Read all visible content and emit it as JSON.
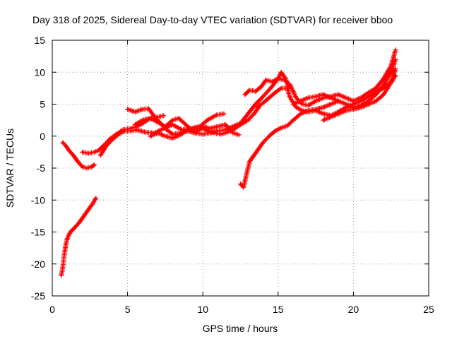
{
  "chart_data": {
    "type": "scatter",
    "title": "Day 318 of 2025, Sidereal Day-to-day VTEC variation (SDTVAR) for receiver bboo",
    "xlabel": "GPS time / hours",
    "ylabel": "SDTVAR / TECUs",
    "xlim": [
      0,
      25
    ],
    "ylim": [
      -25,
      15
    ],
    "xticks": [
      0,
      5,
      10,
      15,
      20,
      25
    ],
    "yticks": [
      -25,
      -20,
      -15,
      -10,
      -5,
      0,
      5,
      10,
      15
    ],
    "grid": true,
    "marker": "+",
    "series": [
      {
        "color": "#ff0000",
        "segments": [
          [
            [
              0.6,
              -21.8
            ],
            [
              0.7,
              -20.5
            ],
            [
              0.8,
              -18.5
            ],
            [
              0.9,
              -17.0
            ],
            [
              1.0,
              -16.0
            ],
            [
              1.2,
              -15.0
            ],
            [
              1.5,
              -14.3
            ],
            [
              1.8,
              -13.5
            ],
            [
              2.1,
              -12.5
            ],
            [
              2.4,
              -11.5
            ],
            [
              2.7,
              -10.5
            ],
            [
              2.9,
              -9.7
            ]
          ],
          [
            [
              0.7,
              -1.0
            ],
            [
              0.9,
              -1.5
            ],
            [
              1.1,
              -2.2
            ],
            [
              1.4,
              -3.0
            ],
            [
              1.7,
              -4.0
            ],
            [
              2.0,
              -4.8
            ],
            [
              2.3,
              -5.0
            ],
            [
              2.6,
              -4.8
            ],
            [
              2.8,
              -4.5
            ]
          ],
          [
            [
              2.0,
              -2.5
            ],
            [
              2.4,
              -2.7
            ],
            [
              2.8,
              -2.5
            ],
            [
              3.1,
              -2.2
            ],
            [
              3.4,
              -1.5
            ],
            [
              3.8,
              -0.5
            ],
            [
              4.2,
              0.2
            ],
            [
              4.7,
              1.0
            ],
            [
              5.2,
              1.2
            ],
            [
              5.6,
              1.5
            ],
            [
              6.0,
              2.0
            ],
            [
              6.5,
              2.8
            ],
            [
              7.0,
              3.0
            ],
            [
              7.4,
              3.2
            ]
          ],
          [
            [
              3.2,
              -3.0
            ],
            [
              3.6,
              -1.5
            ],
            [
              4.0,
              -0.5
            ],
            [
              4.4,
              0.3
            ],
            [
              4.8,
              0.8
            ],
            [
              5.2,
              0.8
            ],
            [
              5.6,
              1.0
            ],
            [
              6.2,
              0.6
            ],
            [
              6.8,
              0.5
            ],
            [
              7.4,
              1.2
            ],
            [
              8.0,
              1.8
            ],
            [
              8.6,
              1.0
            ],
            [
              9.2,
              1.2
            ],
            [
              9.8,
              1.5
            ],
            [
              10.3,
              2.5
            ],
            [
              10.9,
              3.3
            ],
            [
              11.4,
              3.5
            ]
          ],
          [
            [
              5.0,
              4.2
            ],
            [
              5.5,
              3.8
            ],
            [
              6.0,
              4.2
            ],
            [
              6.4,
              4.3
            ],
            [
              6.8,
              3.0
            ],
            [
              7.2,
              2.0
            ],
            [
              7.6,
              1.0
            ],
            [
              8.0,
              0.3
            ],
            [
              8.5,
              0.5
            ],
            [
              9.0,
              0.8
            ],
            [
              9.5,
              0.5
            ],
            [
              10.0,
              0.3
            ],
            [
              10.5,
              0.5
            ],
            [
              11.0,
              0.8
            ],
            [
              11.5,
              1.0
            ],
            [
              12.0,
              1.5
            ],
            [
              12.5,
              2.0
            ],
            [
              13.0,
              3.5
            ],
            [
              13.5,
              5.0
            ],
            [
              14.0,
              6.2
            ],
            [
              14.5,
              7.5
            ],
            [
              15.0,
              9.0
            ],
            [
              15.2,
              10.0
            ],
            [
              15.5,
              9.0
            ],
            [
              15.7,
              7.5
            ]
          ],
          [
            [
              6.5,
              0.0
            ],
            [
              7.0,
              0.5
            ],
            [
              7.5,
              0.0
            ],
            [
              8.0,
              -0.3
            ],
            [
              8.5,
              0.2
            ],
            [
              9.0,
              1.0
            ],
            [
              9.5,
              1.2
            ],
            [
              10.0,
              1.2
            ],
            [
              10.4,
              0.8
            ],
            [
              10.8,
              0.5
            ],
            [
              11.2,
              0.3
            ],
            [
              11.6,
              0.6
            ],
            [
              12.0,
              1.0
            ],
            [
              12.5,
              1.8
            ],
            [
              13.0,
              2.5
            ],
            [
              13.4,
              3.5
            ],
            [
              13.7,
              4.5
            ]
          ],
          [
            [
              5.5,
              1.8
            ],
            [
              6.0,
              2.5
            ],
            [
              6.5,
              2.8
            ],
            [
              7.0,
              2.2
            ],
            [
              7.5,
              1.5
            ],
            [
              8.0,
              2.5
            ],
            [
              8.4,
              2.8
            ],
            [
              9.0,
              1.5
            ],
            [
              9.5,
              0.5
            ],
            [
              10.0,
              1.5
            ],
            [
              10.5,
              1.2
            ],
            [
              11.0,
              1.5
            ],
            [
              11.5,
              1.8
            ],
            [
              12.0,
              0.5
            ],
            [
              12.4,
              0.2
            ]
          ],
          [
            [
              12.5,
              -7.5
            ],
            [
              12.7,
              -8.0
            ],
            [
              12.9,
              -6.0
            ],
            [
              13.1,
              -4.0
            ],
            [
              13.4,
              -3.0
            ],
            [
              13.7,
              -2.0
            ],
            [
              14.0,
              -1.0
            ],
            [
              14.4,
              0.0
            ],
            [
              14.8,
              0.8
            ],
            [
              15.2,
              1.3
            ],
            [
              15.6,
              1.6
            ],
            [
              16.0,
              2.5
            ],
            [
              16.5,
              3.5
            ],
            [
              17.0,
              4.0
            ],
            [
              17.5,
              4.2
            ],
            [
              18.0,
              4.5
            ],
            [
              18.5,
              5.0
            ],
            [
              19.0,
              5.5
            ]
          ],
          [
            [
              12.8,
              6.5
            ],
            [
              13.1,
              7.2
            ],
            [
              13.5,
              7.0
            ],
            [
              13.9,
              7.8
            ],
            [
              14.2,
              8.8
            ],
            [
              14.6,
              8.5
            ],
            [
              15.0,
              9.0
            ],
            [
              15.4,
              8.8
            ],
            [
              15.8,
              8.0
            ],
            [
              16.2,
              6.0
            ],
            [
              16.6,
              5.0
            ],
            [
              17.0,
              4.8
            ],
            [
              17.5,
              5.5
            ],
            [
              18.0,
              6.0
            ],
            [
              18.5,
              6.2
            ],
            [
              19.0,
              6.5
            ],
            [
              19.5,
              6.0
            ],
            [
              20.0,
              5.5
            ],
            [
              20.5,
              6.0
            ],
            [
              21.0,
              6.8
            ],
            [
              21.5,
              7.5
            ],
            [
              22.0,
              9.0
            ],
            [
              22.5,
              11.0
            ],
            [
              22.8,
              13.5
            ]
          ],
          [
            [
              13.6,
              4.5
            ],
            [
              14.0,
              5.2
            ],
            [
              14.4,
              6.0
            ],
            [
              14.8,
              6.8
            ],
            [
              15.2,
              7.5
            ],
            [
              15.6,
              7.5
            ],
            [
              15.8,
              6.0
            ],
            [
              16.2,
              4.5
            ],
            [
              16.6,
              4.0
            ],
            [
              17.0,
              3.8
            ],
            [
              17.5,
              4.0
            ],
            [
              18.0,
              3.5
            ],
            [
              18.5,
              3.2
            ],
            [
              19.0,
              3.8
            ],
            [
              19.5,
              4.5
            ],
            [
              20.0,
              5.0
            ],
            [
              20.5,
              5.5
            ],
            [
              21.0,
              6.2
            ],
            [
              21.5,
              7.0
            ],
            [
              22.0,
              7.5
            ],
            [
              22.5,
              8.5
            ],
            [
              22.8,
              10.5
            ]
          ],
          [
            [
              16.0,
              5.0
            ],
            [
              16.5,
              5.5
            ],
            [
              17.0,
              6.0
            ],
            [
              17.5,
              6.2
            ],
            [
              18.0,
              6.5
            ],
            [
              18.5,
              6.0
            ],
            [
              19.0,
              5.5
            ],
            [
              19.5,
              5.0
            ],
            [
              20.0,
              4.5
            ],
            [
              20.5,
              4.8
            ],
            [
              21.0,
              5.5
            ],
            [
              21.5,
              6.5
            ],
            [
              22.0,
              8.0
            ],
            [
              22.5,
              10.0
            ],
            [
              22.8,
              12.0
            ]
          ],
          [
            [
              18.0,
              2.5
            ],
            [
              18.5,
              3.0
            ],
            [
              19.0,
              3.5
            ],
            [
              19.5,
              4.0
            ],
            [
              20.0,
              4.2
            ],
            [
              20.5,
              4.5
            ],
            [
              21.0,
              5.0
            ],
            [
              21.5,
              5.5
            ],
            [
              22.0,
              6.5
            ],
            [
              22.4,
              8.0
            ],
            [
              22.8,
              9.5
            ]
          ]
        ]
      }
    ]
  }
}
